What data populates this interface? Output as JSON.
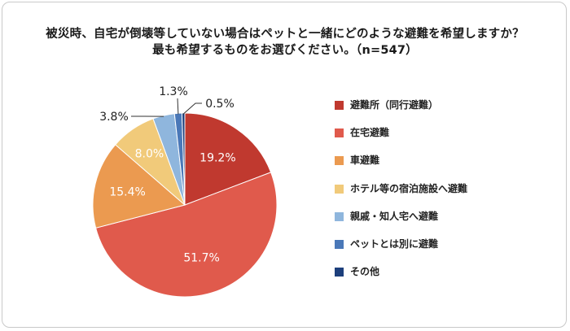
{
  "title_lines": [
    "被災時、自宅が倒壊等していない場合はペットと一緒にどのような避難を希望しますか？",
    "最も希望するものをお選びください。（n=547）"
  ],
  "chart_data": {
    "type": "pie",
    "title": "被災時、自宅が倒壊等していない場合はペットと一緒にどのような避難を希望しますか？ 最も希望するものをお選びください。（n=547）",
    "start": "12 o'clock",
    "direction": "clockwise",
    "slices": [
      {
        "label": "避難所（同行避難）",
        "value": 19.2,
        "display": "19.2%",
        "color": "#c0392f",
        "label_inside": true
      },
      {
        "label": "在宅避難",
        "value": 51.7,
        "display": "51.7%",
        "color": "#e05a4c",
        "label_inside": true
      },
      {
        "label": "車避難",
        "value": 15.4,
        "display": "15.4%",
        "color": "#eb9a50",
        "label_inside": true
      },
      {
        "label": "ホテル等の宿泊施設へ避難",
        "value": 8.0,
        "display": "8.0%",
        "color": "#f1ca7a",
        "label_inside": true
      },
      {
        "label": "親戚・知人宅へ避難",
        "value": 3.8,
        "display": "3.8%",
        "color": "#8fb6dd",
        "label_inside": false
      },
      {
        "label": "ペットとは別に避難",
        "value": 1.3,
        "display": "1.3%",
        "color": "#4a78b8",
        "label_inside": false
      },
      {
        "label": "その他",
        "value": 0.5,
        "display": "0.5%",
        "color": "#1d3f7c",
        "label_inside": false
      }
    ],
    "legend_position": "right"
  }
}
